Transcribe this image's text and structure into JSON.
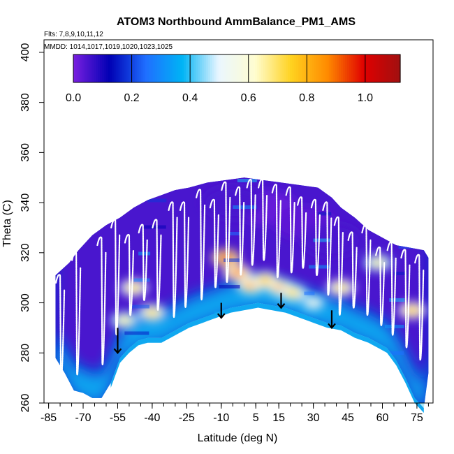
{
  "chart_data": {
    "type": "heatmap",
    "title": "ATOM3 Northbound AmmBalance_PM1_AMS",
    "subtitle_flights": "Flts: 7,8,9,10,11,12",
    "subtitle_dates": "MMDD: 1014,1017,1019,1020,1023,1025",
    "xlabel": "Latitude (deg N)",
    "ylabel": "Theta (C)",
    "xlim": [
      -87,
      82
    ],
    "ylim": [
      260,
      405
    ],
    "x_ticks": [
      "-85",
      "-70",
      "-55",
      "-40",
      "-25",
      "-10",
      "5",
      "15",
      "30",
      "45",
      "60",
      "75"
    ],
    "x_tick_values": [
      -85,
      -70,
      -55,
      -40,
      -25,
      -10,
      5,
      15,
      30,
      45,
      60,
      75
    ],
    "y_ticks": [
      "260",
      "280",
      "300",
      "320",
      "340",
      "360",
      "380",
      "400"
    ],
    "y_tick_values": [
      260,
      280,
      300,
      320,
      340,
      360,
      380,
      400
    ],
    "colorbar": {
      "range": [
        0.0,
        1.12
      ],
      "ticks": [
        "0.0",
        "0.2",
        "0.4",
        "0.6",
        "0.8",
        "1.0"
      ],
      "tick_values": [
        0.0,
        0.2,
        0.4,
        0.6,
        0.8,
        1.0
      ],
      "colors": [
        "#7a1fe0",
        "#0000b4",
        "#1f6fff",
        "#00b4f5",
        "#eaf6ff",
        "#fffdd0",
        "#ffd21f",
        "#ff8a00",
        "#e00000",
        "#a01010"
      ]
    },
    "top_boundary": [
      [
        -82,
        311
      ],
      [
        -76,
        316
      ],
      [
        -72,
        321
      ],
      [
        -66,
        327
      ],
      [
        -60,
        331
      ],
      [
        -54,
        334
      ],
      [
        -48,
        338
      ],
      [
        -42,
        341
      ],
      [
        -36,
        343
      ],
      [
        -30,
        345
      ],
      [
        -24,
        346
      ],
      [
        -16,
        348
      ],
      [
        -8,
        349
      ],
      [
        0,
        350
      ],
      [
        8,
        349
      ],
      [
        16,
        348
      ],
      [
        24,
        347
      ],
      [
        32,
        346
      ],
      [
        38,
        342
      ],
      [
        42,
        338
      ],
      [
        48,
        334
      ],
      [
        54,
        329
      ],
      [
        60,
        326
      ],
      [
        66,
        323
      ],
      [
        72,
        322
      ],
      [
        78,
        321
      ],
      [
        80,
        318
      ]
    ],
    "bottom_boundary": [
      [
        -82,
        278
      ],
      [
        -78,
        272
      ],
      [
        -74,
        265
      ],
      [
        -70,
        264
      ],
      [
        -66,
        262
      ],
      [
        -62,
        262
      ],
      [
        -58,
        268
      ],
      [
        -54,
        278
      ],
      [
        -50,
        282
      ],
      [
        -46,
        285
      ],
      [
        -42,
        286
      ],
      [
        -36,
        286
      ],
      [
        -30,
        289
      ],
      [
        -24,
        292
      ],
      [
        -18,
        294
      ],
      [
        -12,
        296
      ],
      [
        -6,
        298
      ],
      [
        0,
        299
      ],
      [
        6,
        300
      ],
      [
        12,
        299
      ],
      [
        18,
        298
      ],
      [
        24,
        296
      ],
      [
        30,
        294
      ],
      [
        36,
        292
      ],
      [
        42,
        291
      ],
      [
        48,
        288
      ],
      [
        54,
        286
      ],
      [
        58,
        284
      ],
      [
        62,
        282
      ],
      [
        66,
        277
      ],
      [
        70,
        270
      ],
      [
        74,
        262
      ],
      [
        78,
        258
      ],
      [
        80,
        272
      ]
    ],
    "hotspots": [
      {
        "lat": -8,
        "theta": 318,
        "value": 0.95
      },
      {
        "lat": -3,
        "theta": 312,
        "value": 0.85
      },
      {
        "lat": 3,
        "theta": 307,
        "value": 0.8
      },
      {
        "lat": 9,
        "theta": 309,
        "value": 0.75
      },
      {
        "lat": 16,
        "theta": 306,
        "value": 0.8
      },
      {
        "lat": 21,
        "theta": 304,
        "value": 0.7
      },
      {
        "lat": -48,
        "theta": 306,
        "value": 0.7
      },
      {
        "lat": -40,
        "theta": 296,
        "value": 0.7
      },
      {
        "lat": -52,
        "theta": 293,
        "value": 0.65
      },
      {
        "lat": 42,
        "theta": 306,
        "value": 0.7
      },
      {
        "lat": 58,
        "theta": 316,
        "value": 0.65
      },
      {
        "lat": 73,
        "theta": 297,
        "value": 0.75
      },
      {
        "lat": 30,
        "theta": 300,
        "value": 0.55
      }
    ],
    "cold_regions": [
      {
        "lat": 10,
        "theta": 338,
        "value": 0.02
      },
      {
        "lat": 26,
        "theta": 332,
        "value": 0.03
      },
      {
        "lat": -5,
        "theta": 340,
        "value": 0.05
      },
      {
        "lat": 38,
        "theta": 325,
        "value": 0.05
      }
    ],
    "flight_profiles": [
      {
        "lat": -80,
        "low": 265,
        "high": 311
      },
      {
        "lat": -73,
        "low": 266,
        "high": 320
      },
      {
        "lat": -62,
        "low": 270,
        "high": 326
      },
      {
        "lat": -56,
        "low": 282,
        "high": 333
      },
      {
        "lat": -50,
        "low": 290,
        "high": 327
      },
      {
        "lat": -44,
        "low": 296,
        "high": 331
      },
      {
        "lat": -38,
        "low": 292,
        "high": 333
      },
      {
        "lat": -31,
        "low": 289,
        "high": 340
      },
      {
        "lat": -26,
        "low": 293,
        "high": 340
      },
      {
        "lat": -19,
        "low": 296,
        "high": 345
      },
      {
        "lat": -13,
        "low": 301,
        "high": 341
      },
      {
        "lat": -8,
        "low": 303,
        "high": 348
      },
      {
        "lat": -2,
        "low": 306,
        "high": 346
      },
      {
        "lat": 3,
        "low": 310,
        "high": 349
      },
      {
        "lat": 8,
        "low": 312,
        "high": 349
      },
      {
        "lat": 14,
        "low": 305,
        "high": 347
      },
      {
        "lat": 20,
        "low": 307,
        "high": 346
      },
      {
        "lat": 25,
        "low": 309,
        "high": 342
      },
      {
        "lat": 31,
        "low": 306,
        "high": 341
      },
      {
        "lat": 36,
        "low": 298,
        "high": 340
      },
      {
        "lat": 41,
        "low": 290,
        "high": 334
      },
      {
        "lat": 47,
        "low": 293,
        "high": 328
      },
      {
        "lat": 53,
        "low": 290,
        "high": 331
      },
      {
        "lat": 59,
        "low": 286,
        "high": 322
      },
      {
        "lat": 64,
        "low": 282,
        "high": 324
      },
      {
        "lat": 70,
        "low": 277,
        "high": 321
      },
      {
        "lat": 76,
        "low": 272,
        "high": 319
      }
    ],
    "arrows": [
      {
        "lat": -55,
        "theta_top": 290,
        "theta_tip": 280
      },
      {
        "lat": -10,
        "theta_top": 300,
        "theta_tip": 294
      },
      {
        "lat": 16,
        "theta_top": 304,
        "theta_tip": 298
      },
      {
        "lat": 38,
        "theta_top": 297,
        "theta_tip": 290
      }
    ]
  }
}
